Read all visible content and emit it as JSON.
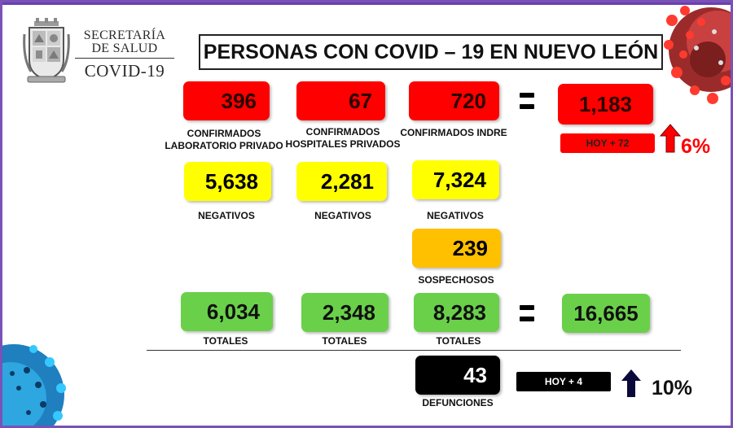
{
  "header": {
    "brand_line1": "SECRETARÍA",
    "brand_line2": "DE SALUD",
    "brand_line3": "COVID-19",
    "title": "PERSONAS CON COVID – 19 EN NUEVO LEÓN"
  },
  "colors": {
    "frame": "#7a52b7",
    "confirmed": "#ff0000",
    "negative": "#ffff00",
    "suspect": "#ffc000",
    "total": "#6ad04a",
    "deaths": "#000000"
  },
  "confirmed": {
    "private_lab": {
      "value": "396",
      "label_l1": "CONFIRMADOS",
      "label_l2": "LABORATORIO PRIVADO"
    },
    "private_hospitals": {
      "value": "67",
      "label_l1": "CONFIRMADOS",
      "label_l2": "HOSPITALES PRIVADOS"
    },
    "indre": {
      "value": "720",
      "label": "CONFIRMADOS INDRE"
    },
    "total": {
      "value": "1,183"
    },
    "today_badge": "HOY + 72",
    "change_pct": "6%"
  },
  "negatives": {
    "private_lab": {
      "value": "5,638",
      "label": "NEGATIVOS"
    },
    "private_hospitals": {
      "value": "2,281",
      "label": "NEGATIVOS"
    },
    "indre": {
      "value": "7,324",
      "label": "NEGATIVOS"
    }
  },
  "suspects": {
    "value": "239",
    "label": "SOSPECHOSOS"
  },
  "totals": {
    "private_lab": {
      "value": "6,034",
      "label": "TOTALES"
    },
    "private_hospitals": {
      "value": "2,348",
      "label": "TOTALES"
    },
    "indre": {
      "value": "8,283",
      "label": "TOTALES"
    },
    "grand_total": {
      "value": "16,665"
    }
  },
  "deaths": {
    "value": "43",
    "label": "DEFUNCIONES",
    "today_badge": "HOY + 4",
    "change_pct": "10%"
  },
  "icons": [
    "state-coat-of-arms-icon",
    "coronavirus-icon",
    "equals-icon",
    "arrow-up-icon"
  ]
}
